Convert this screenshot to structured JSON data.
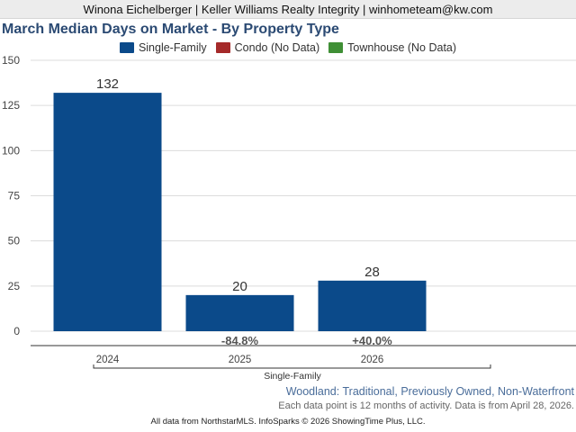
{
  "header": {
    "agent_line": "Winona Eichelberger | Keller Williams Realty Integrity | winhometeam@kw.com"
  },
  "legend": [
    {
      "label": "Single-Family",
      "color": "#0b4a8a"
    },
    {
      "label": "Condo (No Data)",
      "color": "#a52a2a"
    },
    {
      "label": "Townhouse (No Data)",
      "color": "#3f8f35"
    }
  ],
  "chart_data": {
    "type": "bar",
    "title": "March Median Days on Market - By Property Type",
    "categories": [
      "2024",
      "2025",
      "2026"
    ],
    "series": [
      {
        "name": "Single-Family",
        "values": [
          132,
          20,
          28
        ],
        "color": "#0b4a8a"
      }
    ],
    "data_labels": [
      "132",
      "20",
      "28"
    ],
    "change_labels": [
      "",
      "-84.8%",
      "+40.0%"
    ],
    "group_label": "Single-Family",
    "ylim": [
      0,
      150
    ],
    "yticks": [
      0,
      25,
      50,
      75,
      100,
      125,
      150
    ],
    "xlabel": "",
    "ylabel": "",
    "grid": true
  },
  "footer": {
    "subtitle": "Woodland: Traditional, Previously Owned, Non-Waterfront",
    "note": "Each data point is 12 months of activity. Data is from April 28, 2026.",
    "source": "All data from NorthstarMLS. InfoSparks © 2026 ShowingTime Plus, LLC."
  }
}
